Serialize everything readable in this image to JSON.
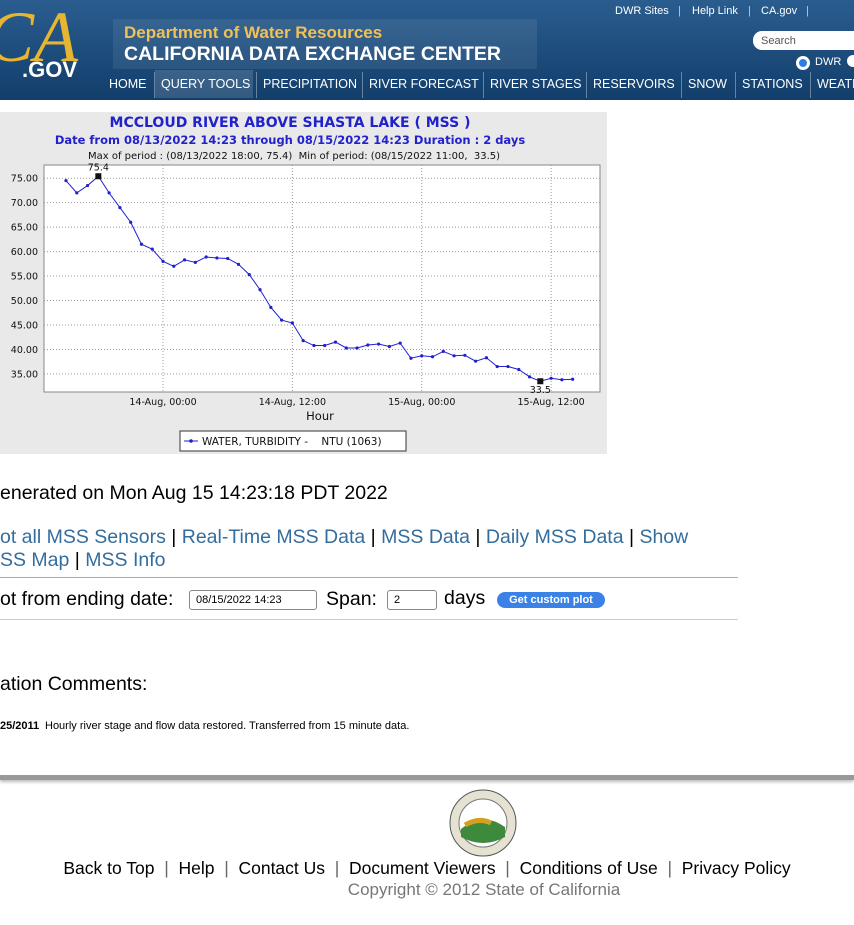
{
  "header": {
    "top_links": [
      "DWR Sites",
      "Help Link",
      "CA.gov"
    ],
    "search_placeholder": "Search",
    "radio_label": "DWR",
    "logo_ca": "CA",
    "logo_gov": ".GOV",
    "agency": "Department of Water Resources",
    "site_title": "CALIFORNIA DATA EXCHANGE CENTER",
    "nav": [
      "HOME",
      "QUERY TOOLS",
      "PRECIPITATION",
      "RIVER FORECAST",
      "RIVER STAGES",
      "RESERVOIRS",
      "SNOW",
      "STATIONS",
      "WEATH"
    ]
  },
  "chart_data": {
    "type": "line",
    "title": "MCCLOUD RIVER ABOVE SHASTA LAKE ( MSS )",
    "subtitle": "Date from 08/13/2022 14:23 through 08/15/2022 14:23 Duration : 2 days",
    "period_info": "Max of period : (08/13/2022 18:00, 75.4)  Min of period: (08/15/2022 11:00,  33.5)",
    "x_label": "Hour",
    "x": [
      "13-Aug, 15:00",
      "13-Aug, 16:00",
      "13-Aug, 17:00",
      "13-Aug, 18:00",
      "13-Aug, 19:00",
      "13-Aug, 20:00",
      "13-Aug, 21:00",
      "13-Aug, 22:00",
      "13-Aug, 23:00",
      "14-Aug, 00:00",
      "14-Aug, 01:00",
      "14-Aug, 02:00",
      "14-Aug, 03:00",
      "14-Aug, 04:00",
      "14-Aug, 05:00",
      "14-Aug, 06:00",
      "14-Aug, 07:00",
      "14-Aug, 08:00",
      "14-Aug, 09:00",
      "14-Aug, 10:00",
      "14-Aug, 11:00",
      "14-Aug, 12:00",
      "14-Aug, 13:00",
      "14-Aug, 14:00",
      "14-Aug, 15:00",
      "14-Aug, 16:00",
      "14-Aug, 17:00",
      "14-Aug, 18:00",
      "14-Aug, 19:00",
      "14-Aug, 20:00",
      "14-Aug, 21:00",
      "14-Aug, 22:00",
      "14-Aug, 23:00",
      "15-Aug, 00:00",
      "15-Aug, 01:00",
      "15-Aug, 02:00",
      "15-Aug, 03:00",
      "15-Aug, 04:00",
      "15-Aug, 05:00",
      "15-Aug, 06:00",
      "15-Aug, 07:00",
      "15-Aug, 08:00",
      "15-Aug, 09:00",
      "15-Aug, 10:00",
      "15-Aug, 11:00",
      "15-Aug, 12:00",
      "15-Aug, 13:00",
      "15-Aug, 14:00"
    ],
    "series": [
      {
        "name": "WATER, TURBIDITY -    NTU (1063)",
        "color": "#2020d0",
        "values": [
          74.5,
          72,
          73.5,
          75.4,
          72,
          69,
          66,
          61.5,
          60.5,
          58,
          57,
          58.3,
          57.8,
          58.9,
          58.7,
          58.6,
          57.4,
          55.3,
          52.2,
          48.6,
          46,
          45.4,
          41.8,
          40.8,
          40.8,
          41.5,
          40.3,
          40.3,
          40.9,
          41.1,
          40.6,
          41.3,
          38.2,
          38.7,
          38.5,
          39.6,
          38.7,
          38.8,
          37.6,
          38.3,
          36.5,
          36.5,
          35.9,
          34.4,
          33.5,
          34.1,
          33.8,
          33.9
        ]
      }
    ],
    "annotations": [
      "75.4",
      "33.5"
    ],
    "xticks": [
      "14-Aug, 00:00",
      "14-Aug, 12:00",
      "15-Aug, 00:00",
      "15-Aug, 12:00"
    ],
    "ylim": [
      31.3,
      77.7
    ],
    "yticks": [
      {
        "value": 35,
        "label": "35.00"
      },
      {
        "value": 40,
        "label": "40.00"
      },
      {
        "value": 45,
        "label": "45.00"
      },
      {
        "value": 50,
        "label": "50.00"
      },
      {
        "value": 55,
        "label": "55.00"
      },
      {
        "value": 60,
        "label": "60.00"
      },
      {
        "value": 65,
        "label": "65.00"
      },
      {
        "value": 70,
        "label": "70.00"
      },
      {
        "value": 75,
        "label": "75.00"
      }
    ],
    "grid": true
  },
  "body": {
    "generated": "enerated on Mon Aug 15 14:23:18 PDT 2022",
    "links": [
      [
        "ot all MSS Sensors",
        "Real-Time MSS Data",
        "MSS Data",
        "Daily MSS Data",
        "Show"
      ],
      [
        "SS Map",
        "MSS Info"
      ]
    ],
    "form_label": "ot from ending date:",
    "date_value": "08/15/2022 14:23",
    "span_label": "Span:",
    "span_value": "2",
    "span_unit": "days",
    "button": "Get custom plot",
    "comments_title": "ation Comments:",
    "comment_date": "25/2011",
    "comment_text": "Hourly river stage and flow data restored. Transferred from 15 minute data."
  },
  "footer": {
    "links": [
      "Back to Top",
      "Help",
      "Contact Us",
      "Document Viewers",
      "Conditions of Use",
      "Privacy Policy"
    ],
    "copyright": "Copyright © 2012 State of California"
  }
}
